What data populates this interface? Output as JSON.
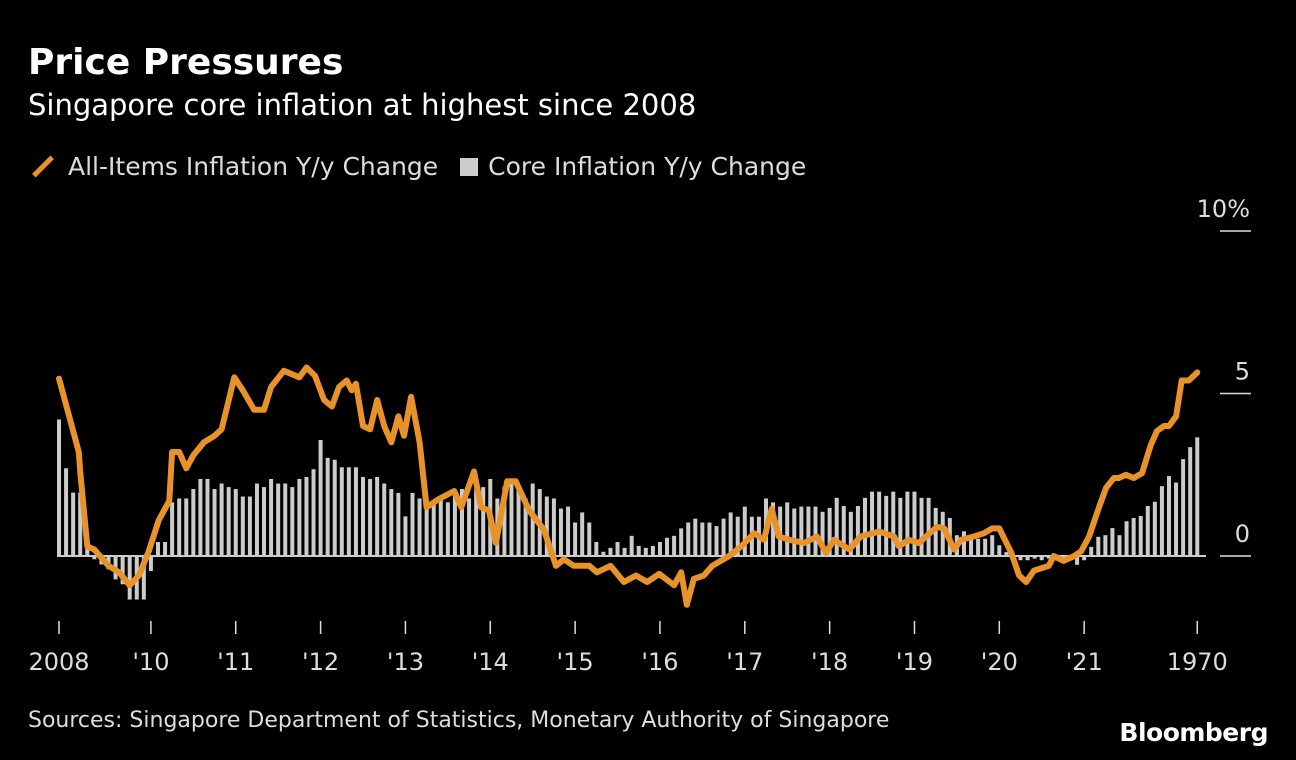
{
  "header": {
    "title": "Price Pressures",
    "subtitle": "Singapore core inflation at highest since 2008"
  },
  "footer": {
    "source": "Sources: Singapore Department of Statistics, Monetary Authority of Singapore",
    "logo": "Bloomberg"
  },
  "colors": {
    "line": "#E8922A",
    "bars": "#CCCCCC",
    "background": "#000000"
  },
  "chart_data": {
    "type": "bar+line",
    "title": "Price Pressures",
    "subtitle": "Singapore core inflation at highest since 2008",
    "legend": [
      "All-Items Inflation Y/y Change",
      "Core Inflation Y/y Change"
    ],
    "legend_placement": "top-left",
    "x_unit": "month index from start",
    "x_range": [
      0,
      161
    ],
    "x_ticks": [
      {
        "m": 0,
        "label": "2008"
      },
      {
        "m": 13,
        "label": "'10"
      },
      {
        "m": 25,
        "label": "'11"
      },
      {
        "m": 37,
        "label": "'12"
      },
      {
        "m": 49,
        "label": "'13"
      },
      {
        "m": 61,
        "label": "'14"
      },
      {
        "m": 73,
        "label": "'15"
      },
      {
        "m": 85,
        "label": "'16"
      },
      {
        "m": 97,
        "label": "'17"
      },
      {
        "m": 109,
        "label": "'18"
      },
      {
        "m": 121,
        "label": "'19"
      },
      {
        "m": 133,
        "label": "'20"
      },
      {
        "m": 145,
        "label": "'21"
      },
      {
        "m": 161,
        "label": "1970"
      }
    ],
    "y_ticks": [
      {
        "v": 10,
        "label": "10%"
      },
      {
        "v": 5,
        "label": "5"
      },
      {
        "v": 0,
        "label": "0"
      }
    ],
    "ylim": [
      -2,
      10
    ],
    "grid": false,
    "series": [
      {
        "name": "All-Items Inflation Y/y Change",
        "kind": "line",
        "points": [
          [
            0,
            5.46
          ],
          [
            2.8,
            3.2
          ],
          [
            3,
            2.6
          ],
          [
            4,
            0.3
          ],
          [
            5,
            0.2
          ],
          [
            7,
            -0.3
          ],
          [
            8.5,
            -0.5
          ],
          [
            10,
            -0.9
          ],
          [
            11.3,
            -0.6
          ],
          [
            12.7,
            0.15
          ],
          [
            14.1,
            1.1
          ],
          [
            15.6,
            1.7
          ],
          [
            16,
            3.2
          ],
          [
            17,
            3.2
          ],
          [
            18,
            2.7
          ],
          [
            19,
            3.1
          ],
          [
            20.5,
            3.5
          ],
          [
            22,
            3.7
          ],
          [
            23,
            3.9
          ],
          [
            24.8,
            5.5
          ],
          [
            26,
            5.1
          ],
          [
            27.6,
            4.5
          ],
          [
            29,
            4.5
          ],
          [
            30,
            5.2
          ],
          [
            31.8,
            5.7
          ],
          [
            34,
            5.5
          ],
          [
            35,
            5.8
          ],
          [
            36.2,
            5.55
          ],
          [
            37.5,
            4.8
          ],
          [
            38.6,
            4.6
          ],
          [
            39.6,
            5.2
          ],
          [
            40.7,
            5.4
          ],
          [
            41.4,
            5.1
          ],
          [
            42,
            5.3
          ],
          [
            43,
            4.0
          ],
          [
            44,
            3.9
          ],
          [
            45,
            4.8
          ],
          [
            46,
            4.0
          ],
          [
            47,
            3.5
          ],
          [
            48,
            4.3
          ],
          [
            48.8,
            3.7
          ],
          [
            49.8,
            4.9
          ],
          [
            51,
            3.5
          ],
          [
            52,
            1.5
          ],
          [
            53.7,
            1.75
          ],
          [
            55.9,
            2.0
          ],
          [
            56.9,
            1.5
          ],
          [
            58.7,
            2.6
          ],
          [
            59.7,
            1.5
          ],
          [
            60.8,
            1.4
          ],
          [
            61.8,
            0.4
          ],
          [
            63.4,
            2.3
          ],
          [
            64.6,
            2.3
          ],
          [
            66.5,
            1.4
          ],
          [
            68.6,
            0.8
          ],
          [
            70.3,
            -0.3
          ],
          [
            71.4,
            -0.1
          ],
          [
            72.8,
            -0.3
          ],
          [
            75,
            -0.3
          ],
          [
            76.1,
            -0.5
          ],
          [
            78,
            -0.3
          ],
          [
            79.9,
            -0.8
          ],
          [
            81.6,
            -0.6
          ],
          [
            83.2,
            -0.8
          ],
          [
            84.9,
            -0.55
          ],
          [
            87,
            -0.9
          ],
          [
            88,
            -0.5
          ],
          [
            88.8,
            -1.5
          ],
          [
            89.8,
            -0.7
          ],
          [
            91.2,
            -0.6
          ],
          [
            92.4,
            -0.3
          ],
          [
            94.8,
            0
          ],
          [
            96.5,
            0.3
          ],
          [
            98.3,
            0.7
          ],
          [
            99.7,
            0.5
          ],
          [
            100.8,
            1.45
          ],
          [
            101.8,
            0.6
          ],
          [
            103.3,
            0.5
          ],
          [
            105.4,
            0.4
          ],
          [
            107.2,
            0.6
          ],
          [
            108.5,
            0.1
          ],
          [
            109.6,
            0.5
          ],
          [
            111.8,
            0.2
          ],
          [
            113.4,
            0.6
          ],
          [
            116,
            0.75
          ],
          [
            118.1,
            0.6
          ],
          [
            118.8,
            0.3
          ],
          [
            120.2,
            0.5
          ],
          [
            121.6,
            0.4
          ],
          [
            124.2,
            0.9
          ],
          [
            125.2,
            0.85
          ],
          [
            126.6,
            0.2
          ],
          [
            127.6,
            0.5
          ],
          [
            129.4,
            0.6
          ],
          [
            130.8,
            0.7
          ],
          [
            132,
            0.85
          ],
          [
            133,
            0.85
          ],
          [
            134.7,
            0.1
          ],
          [
            135.8,
            -0.6
          ],
          [
            136.8,
            -0.8
          ],
          [
            137.9,
            -0.45
          ],
          [
            140,
            -0.3
          ],
          [
            140.7,
            0
          ],
          [
            142.1,
            -0.15
          ],
          [
            143.6,
            0
          ],
          [
            144.6,
            0.15
          ],
          [
            145.7,
            0.6
          ],
          [
            147.1,
            1.5
          ],
          [
            148.1,
            2.1
          ],
          [
            149.2,
            2.4
          ],
          [
            149.9,
            2.4
          ],
          [
            150.9,
            2.5
          ],
          [
            152,
            2.4
          ],
          [
            153.2,
            2.55
          ],
          [
            154.4,
            3.4
          ],
          [
            155.3,
            3.85
          ],
          [
            156.3,
            4.0
          ],
          [
            157,
            4.0
          ],
          [
            158,
            4.3
          ],
          [
            158.8,
            5.4
          ],
          [
            159.8,
            5.4
          ],
          [
            161,
            5.65
          ]
        ]
      },
      {
        "name": "Core Inflation Y/y Change",
        "kind": "bar",
        "values": [
          4.2,
          2.7,
          1.95,
          1.95,
          0.3,
          -0.1,
          -0.26,
          -0.41,
          -0.72,
          -0.87,
          -1.34,
          -1.34,
          -1.34,
          -0.46,
          0.43,
          0.43,
          1.65,
          1.77,
          1.77,
          2.06,
          2.37,
          2.37,
          2.06,
          2.23,
          2.12,
          2.06,
          1.83,
          1.83,
          2.23,
          2.12,
          2.37,
          2.23,
          2.23,
          2.12,
          2.37,
          2.43,
          2.67,
          3.57,
          3.02,
          2.96,
          2.73,
          2.73,
          2.73,
          2.43,
          2.37,
          2.43,
          2.23,
          2.06,
          1.94,
          1.22,
          1.94,
          1.77,
          1.77,
          1.65,
          1.77,
          1.65,
          1.83,
          2.06,
          1.77,
          2.06,
          2.12,
          2.37,
          1.77,
          2.12,
          2.37,
          2.12,
          1.77,
          2.23,
          2.06,
          1.83,
          1.77,
          1.46,
          1.52,
          1.03,
          1.34,
          1.03,
          0.43,
          0.13,
          0.25,
          0.43,
          0.25,
          0.62,
          0.31,
          0.25,
          0.31,
          0.43,
          0.56,
          0.62,
          0.85,
          1.03,
          1.15,
          1.03,
          1.03,
          0.92,
          1.15,
          1.34,
          1.21,
          1.52,
          1.21,
          1.21,
          1.77,
          1.65,
          1.52,
          1.65,
          1.46,
          1.52,
          1.52,
          1.52,
          1.36,
          1.48,
          1.79,
          1.54,
          1.36,
          1.54,
          1.79,
          1.98,
          1.98,
          1.85,
          1.98,
          1.79,
          1.98,
          1.98,
          1.79,
          1.79,
          1.48,
          1.36,
          1.17,
          0.64,
          0.76,
          0.64,
          0.53,
          0.53,
          0.64,
          0.33,
          0.12,
          0.02,
          -0.13,
          -0.13,
          -0.08,
          -0.13,
          -0.08,
          -0.03,
          -0.05,
          -0.08,
          -0.27,
          -0.13,
          0.28,
          0.59,
          0.64,
          0.86,
          0.64,
          1.07,
          1.17,
          1.23,
          1.54,
          1.67,
          2.15,
          2.46,
          2.26,
          2.98,
          3.35,
          3.65
        ]
      }
    ]
  }
}
